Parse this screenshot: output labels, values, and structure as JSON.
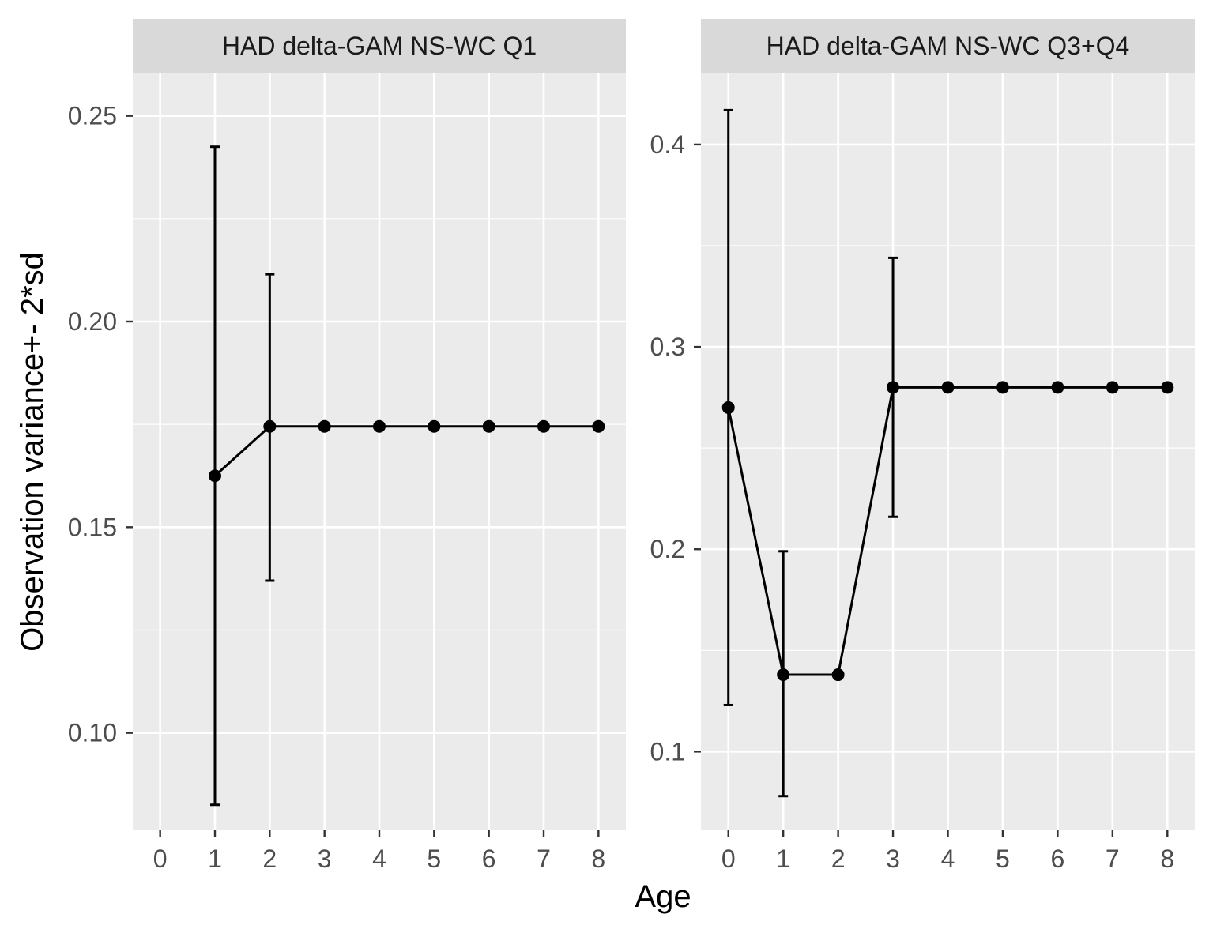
{
  "figure": {
    "x_axis_title": "Age",
    "y_axis_title": "Observation variance+- 2*sd"
  },
  "chart_data": [
    {
      "type": "line",
      "title": "HAD delta-GAM NS-WC Q1",
      "xlabel": "Age",
      "ylabel": "Observation variance+- 2*sd",
      "x_ticks": [
        "0",
        "1",
        "2",
        "3",
        "4",
        "5",
        "6",
        "7",
        "8"
      ],
      "y_ticks": [
        "0.10",
        "0.15",
        "0.20",
        "0.25"
      ],
      "xlim": [
        -0.5,
        8.5
      ],
      "ylim": [
        0.0765,
        0.2605
      ],
      "grid": true,
      "series": [
        {
          "x": [
            1,
            2,
            3,
            4,
            5,
            6,
            7,
            8
          ],
          "y": [
            0.1625,
            0.1745,
            0.1745,
            0.1745,
            0.1745,
            0.1745,
            0.1745,
            0.1745
          ],
          "error_bars": [
            {
              "x": 1,
              "low": 0.0825,
              "high": 0.2425
            },
            {
              "x": 2,
              "low": 0.137,
              "high": 0.2115
            }
          ]
        }
      ]
    },
    {
      "type": "line",
      "title": "HAD delta-GAM NS-WC Q3+Q4",
      "xlabel": "Age",
      "ylabel": "Observation variance+- 2*sd",
      "x_ticks": [
        "0",
        "1",
        "2",
        "3",
        "4",
        "5",
        "6",
        "7",
        "8"
      ],
      "y_ticks": [
        "0.1",
        "0.2",
        "0.3",
        "0.4"
      ],
      "xlim": [
        -0.5,
        8.5
      ],
      "ylim": [
        0.0615,
        0.4355
      ],
      "grid": true,
      "series": [
        {
          "x": [
            0,
            1,
            2,
            3,
            4,
            5,
            6,
            7,
            8
          ],
          "y": [
            0.27,
            0.138,
            0.138,
            0.28,
            0.28,
            0.28,
            0.28,
            0.28,
            0.28
          ],
          "error_bars": [
            {
              "x": 0,
              "low": 0.123,
              "high": 0.417
            },
            {
              "x": 1,
              "low": 0.078,
              "high": 0.199
            },
            {
              "x": 3,
              "low": 0.216,
              "high": 0.344
            }
          ]
        }
      ]
    }
  ]
}
